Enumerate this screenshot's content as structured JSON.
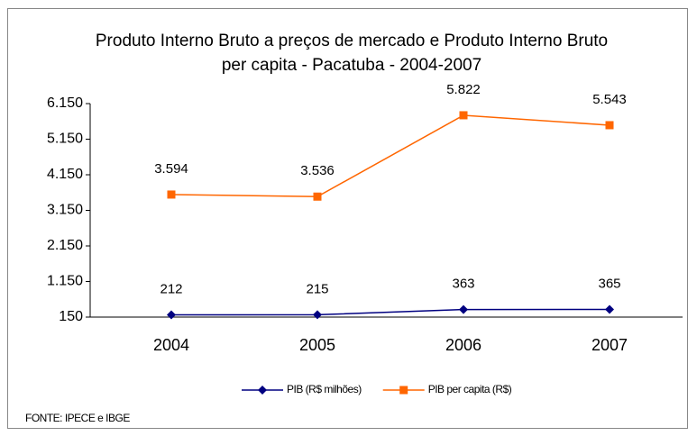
{
  "chart_data": {
    "type": "line",
    "title": "Produto Interno Bruto a preços de mercado e  Produto Interno Bruto per capita - Pacatuba - 2004-2007",
    "categories": [
      "2004",
      "2005",
      "2006",
      "2007"
    ],
    "series": [
      {
        "name": "PIB (R$ milhões)",
        "color": "#000080",
        "marker": "diamond",
        "values": [
          212,
          215,
          363,
          365
        ]
      },
      {
        "name": "PIB per capita (R$)",
        "color": "#ff6600",
        "marker": "square",
        "values": [
          3594,
          3536,
          5822,
          5543
        ],
        "value_labels": [
          "3.594",
          "3.536",
          "5.822",
          "5.543"
        ]
      }
    ],
    "ylim": [
      150,
      6150
    ],
    "yticks": [
      {
        "value": 150,
        "label": "150"
      },
      {
        "value": 1150,
        "label": "1.150"
      },
      {
        "value": 2150,
        "label": "2.150"
      },
      {
        "value": 3150,
        "label": "3.150"
      },
      {
        "value": 4150,
        "label": "4.150"
      },
      {
        "value": 5150,
        "label": "5.150"
      },
      {
        "value": 6150,
        "label": "6.150"
      }
    ],
    "legend": "bottom",
    "source": "FONTE: IPECE e IBGE"
  }
}
